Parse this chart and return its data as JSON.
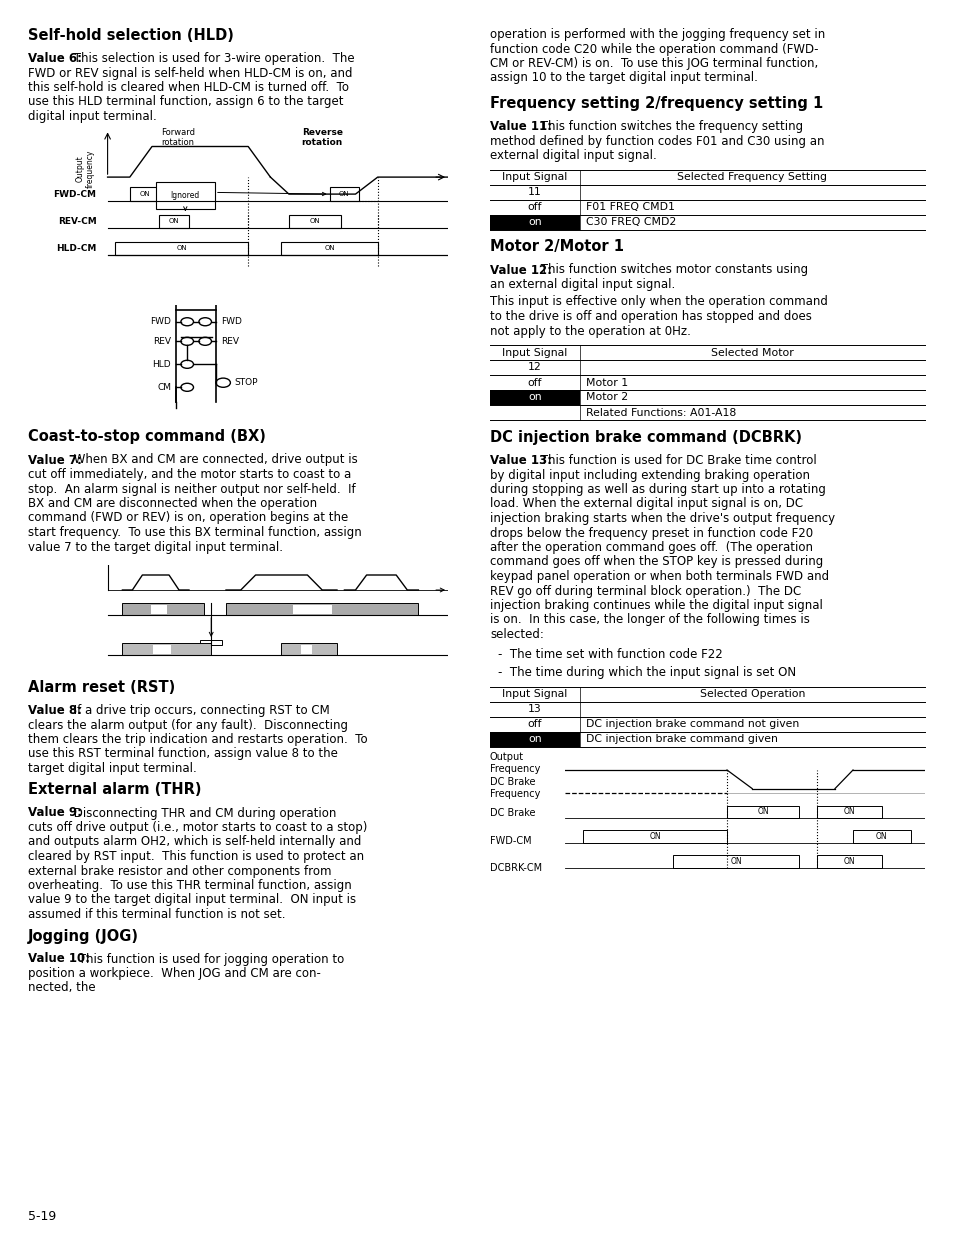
{
  "page_number": "5-19",
  "bg_color": "#ffffff",
  "freq_table": {
    "headers": [
      "Input Signal",
      "Selected Frequency Setting"
    ],
    "rows": [
      {
        "col1": "11",
        "col2": "",
        "black_bg": false
      },
      {
        "col1": "off",
        "col2": "F01 FREQ CMD1",
        "black_bg": false
      },
      {
        "col1": "on",
        "col2": "C30 FREQ CMD2",
        "black_bg": true
      }
    ]
  },
  "motor_table": {
    "headers": [
      "Input Signal",
      "Selected Motor"
    ],
    "rows": [
      {
        "col1": "12",
        "col2": "",
        "black_bg": false
      },
      {
        "col1": "off",
        "col2": "Motor 1",
        "black_bg": false
      },
      {
        "col1": "on",
        "col2": "Motor 2",
        "black_bg": true
      },
      {
        "col1": "",
        "col2": "Related Functions: A01-A18",
        "black_bg": false
      }
    ]
  },
  "dcbrk_table": {
    "headers": [
      "Input Signal",
      "Selected Operation"
    ],
    "rows": [
      {
        "col1": "13",
        "col2": "",
        "black_bg": false
      },
      {
        "col1": "off",
        "col2": "DC injection brake command not given",
        "black_bg": false
      },
      {
        "col1": "on",
        "col2": "DC injection brake command given",
        "black_bg": true
      }
    ]
  }
}
